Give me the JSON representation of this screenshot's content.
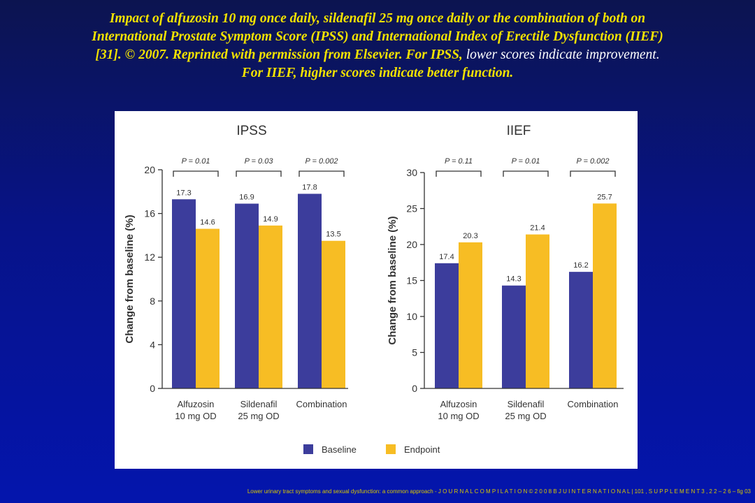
{
  "title": {
    "line1": "Impact of alfuzosin 10 mg once daily, sildenafil 25 mg once daily or the combination of both on",
    "line2": "International Prostate Symptom Score (IPSS) and International Index of Erectile Dysfunction (IIEF)",
    "line3_a": "[31]. © 2007. Reprinted with permission from Elsevier. For IPSS,",
    "line3_b": " lower scores indicate improvement.",
    "line4": "For IIEF, higher scores indicate better function."
  },
  "footer": "Lower urinary tract symptoms and sexual dysfunction: a common approach - J O U R N A L C O M P I L A T I O N © 2 0 0 8 B J U I N T E R N A T I O N A L | 101 , S U P P L E M E N T 3 , 2 2 – 2 6 – fig 03",
  "colors": {
    "baseline": "#3c3d9c",
    "endpoint": "#f7bd24",
    "axis": "#333333"
  },
  "legend": {
    "placement": "bottom-center"
  },
  "chart_data": [
    {
      "type": "bar",
      "title": "IPSS",
      "ylabel": "Change from baseline (%)",
      "categories": [
        [
          "Alfuzosin",
          "10 mg OD"
        ],
        [
          "Sildenafil",
          "25 mg OD"
        ],
        [
          "Combination"
        ]
      ],
      "series": [
        {
          "name": "Baseline",
          "values": [
            17.3,
            16.9,
            17.8
          ]
        },
        {
          "name": "Endpoint",
          "values": [
            14.6,
            14.9,
            13.5
          ]
        }
      ],
      "ylim": [
        0,
        20
      ],
      "yticks": [
        0,
        4,
        8,
        12,
        16,
        20
      ],
      "pvalues": [
        "P = 0.01",
        "P = 0.03",
        "P = 0.002"
      ]
    },
    {
      "type": "bar",
      "title": "IIEF",
      "ylabel": "Change from baseline (%)",
      "categories": [
        [
          "Alfuzosin",
          "10 mg OD"
        ],
        [
          "Sildenafil",
          "25 mg OD"
        ],
        [
          "Combination"
        ]
      ],
      "series": [
        {
          "name": "Baseline",
          "values": [
            17.4,
            14.3,
            16.2
          ]
        },
        {
          "name": "Endpoint",
          "values": [
            20.3,
            21.4,
            25.7
          ]
        }
      ],
      "ylim": [
        0,
        30
      ],
      "yticks": [
        0,
        5,
        10,
        15,
        20,
        25,
        30
      ],
      "pvalues": [
        "P = 0.11",
        "P = 0.01",
        "P = 0.002"
      ]
    }
  ]
}
